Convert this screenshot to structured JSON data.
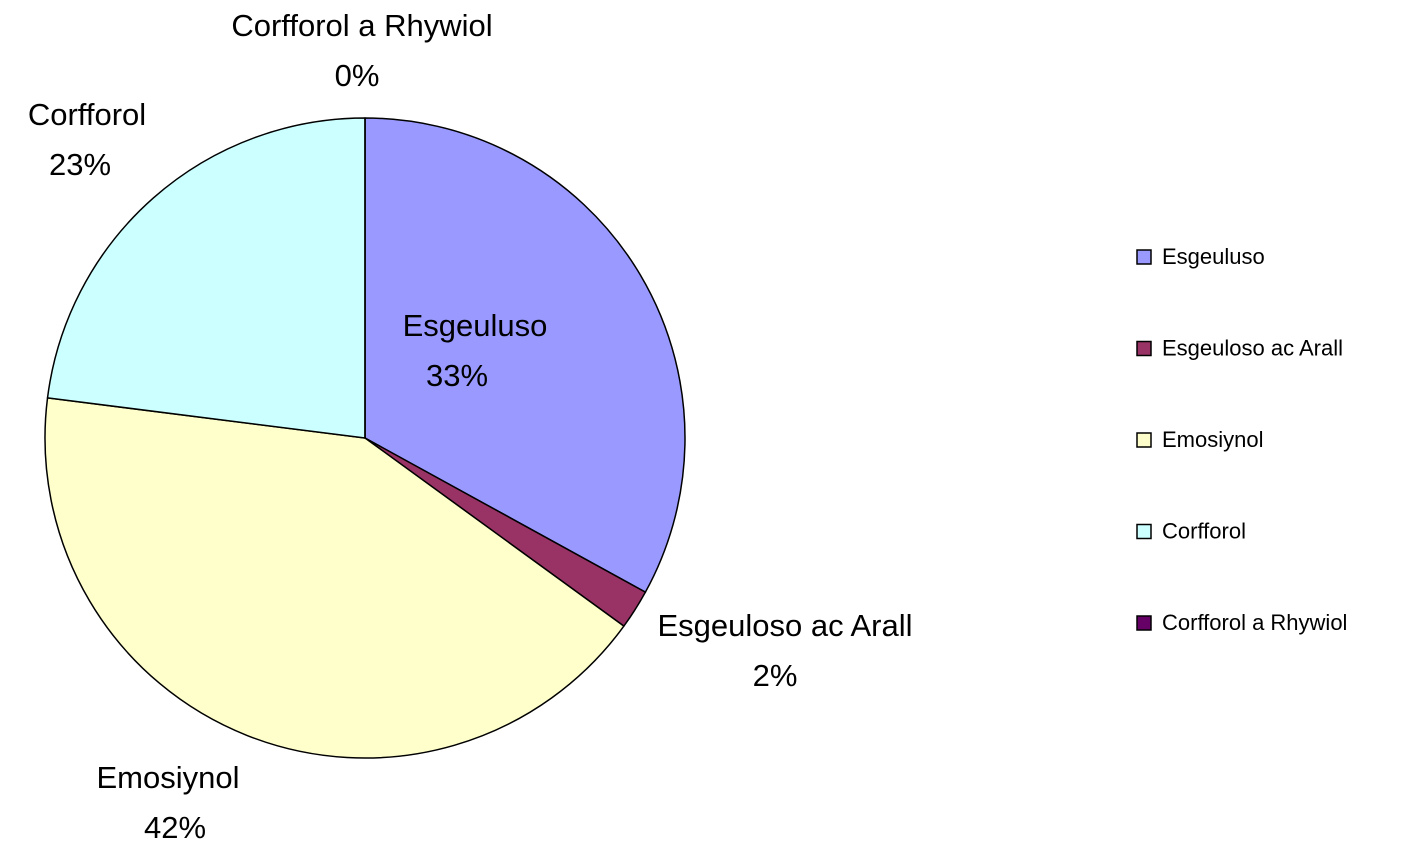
{
  "chart_data": {
    "type": "pie",
    "categories": [
      "Esgeuluso",
      "Esgeuloso ac Arall",
      "Emosiynol",
      "Corfforol",
      "Corfforol a Rhywiol"
    ],
    "values": [
      33,
      2,
      42,
      23,
      0
    ],
    "value_labels": [
      "33%",
      "2%",
      "42%",
      "23%",
      "0%"
    ],
    "colors": [
      "#9999ff",
      "#993366",
      "#ffffcc",
      "#ccffff",
      "#660066"
    ],
    "legend": "right"
  }
}
